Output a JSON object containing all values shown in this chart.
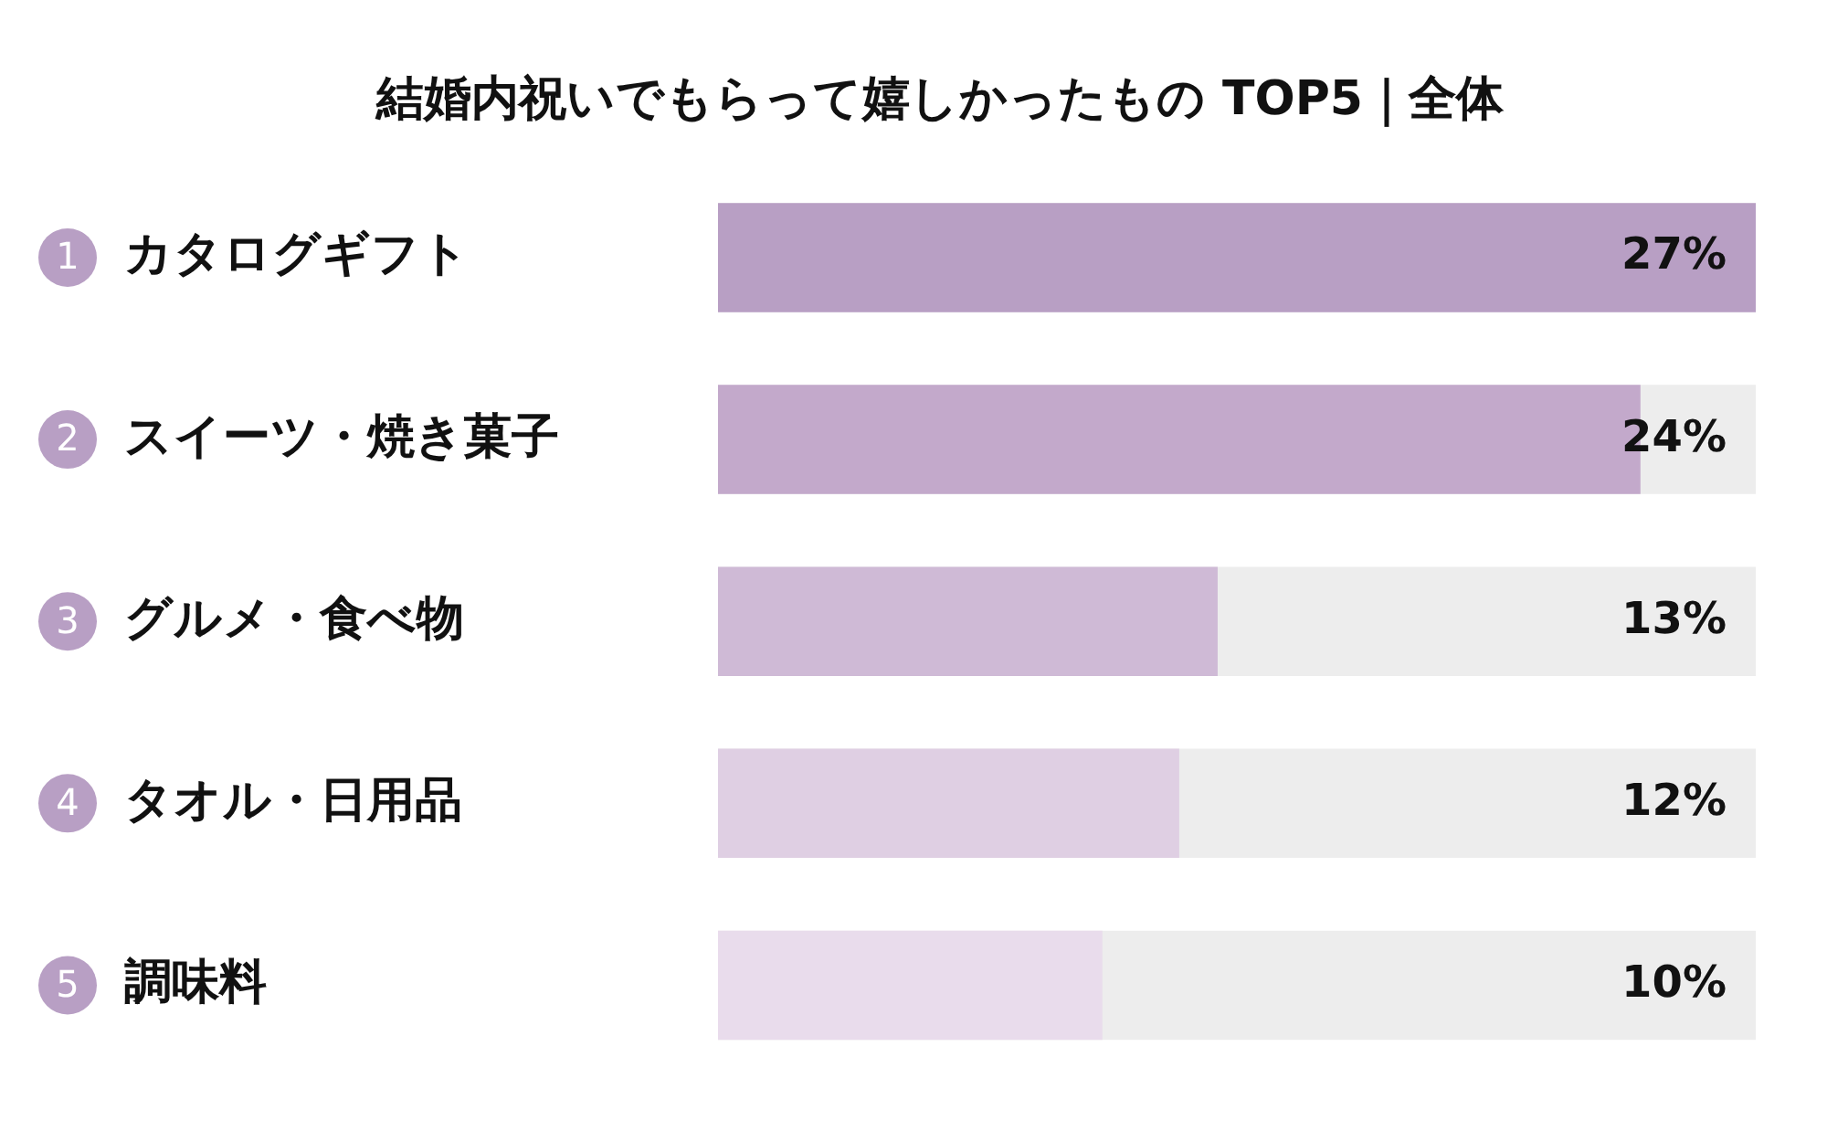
{
  "chart_data": {
    "type": "bar",
    "orientation": "horizontal",
    "title": "結婚内祝いでもらって嬉しかったもの TOP5｜全体",
    "categories": [
      "カタログギフト",
      "スイーツ・焼き菓子",
      "グルメ・食べ物",
      "タオル・日用品",
      "調味料"
    ],
    "values": [
      27,
      24,
      13,
      12,
      10
    ],
    "colors": [
      "#b89fc4",
      "#c3a9cb",
      "#cfbad6",
      "#dfcfe3",
      "#e9dcec"
    ],
    "xlim": [
      0,
      27
    ],
    "data_labels": true,
    "value_labels": [
      "27%",
      "24%",
      "13%",
      "12%",
      "10%"
    ],
    "legend": false,
    "annotations": [
      "1",
      "2",
      "3",
      "4",
      "5"
    ]
  }
}
